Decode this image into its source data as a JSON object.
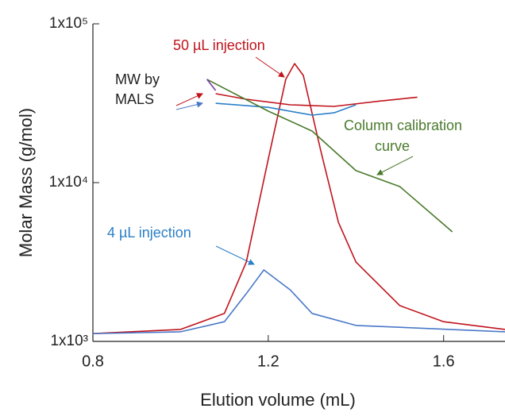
{
  "chart_data": {
    "type": "line",
    "xlabel": "Elution volume (mL)",
    "ylabel": "Molar Mass (g/mol)",
    "xlim": [
      0.8,
      1.74
    ],
    "xticks": [
      0.8,
      1.2,
      1.6
    ],
    "ylim": [
      1000,
      100000
    ],
    "log_y": true,
    "yticks": [
      {
        "value": 1000,
        "label": "1x10³"
      },
      {
        "value": 10000,
        "label": "1x10⁴"
      },
      {
        "value": 100000,
        "label": "1x10⁵"
      }
    ],
    "annotations": [
      {
        "text": "50 µL injection",
        "color": "#c0141c"
      },
      {
        "text": "MW by",
        "color": "#222222"
      },
      {
        "text": "MALS",
        "color": "#222222"
      },
      {
        "text": "Column calibration",
        "color": "#4a7a2c"
      },
      {
        "text": "curve",
        "color": "#4a7a2c"
      },
      {
        "text": "4 µL injection",
        "color": "#2a7fc8"
      }
    ],
    "series": [
      {
        "color": "#c0141c",
        "x": [
          0.8,
          1.0,
          1.1,
          1.15,
          1.2,
          1.24,
          1.26,
          1.28,
          1.32,
          1.36,
          1.4,
          1.5,
          1.6,
          1.74
        ],
        "values": [
          1120,
          1190,
          1500,
          3160,
          14100,
          44700,
          56200,
          47300,
          15800,
          5620,
          3160,
          1680,
          1330,
          1190
        ]
      },
      {
        "color": "#4a78c8",
        "x": [
          0.8,
          1.0,
          1.1,
          1.15,
          1.19,
          1.25,
          1.3,
          1.4,
          1.74
        ],
        "values": [
          1120,
          1150,
          1330,
          2000,
          2820,
          2110,
          1500,
          1260,
          1150
        ]
      },
      {
        "color": "#c0141c",
        "x": [
          1.08,
          1.15,
          1.25,
          1.35,
          1.45,
          1.54
        ],
        "values": [
          36300,
          33500,
          30900,
          30200,
          32500,
          34500
        ]
      },
      {
        "color": "#2a7fc8",
        "x": [
          1.08,
          1.2,
          1.3,
          1.35,
          1.4
        ],
        "values": [
          31600,
          29800,
          26600,
          27500,
          30900
        ]
      },
      {
        "color": "#4a7a2c",
        "x": [
          1.06,
          1.2,
          1.3,
          1.4,
          1.5,
          1.62
        ],
        "values": [
          44700,
          28200,
          21100,
          11900,
          9440,
          4900
        ]
      },
      {
        "color": "#7a3ca8",
        "x": [
          1.06,
          1.08
        ],
        "values": [
          44700,
          38000
        ]
      }
    ]
  }
}
